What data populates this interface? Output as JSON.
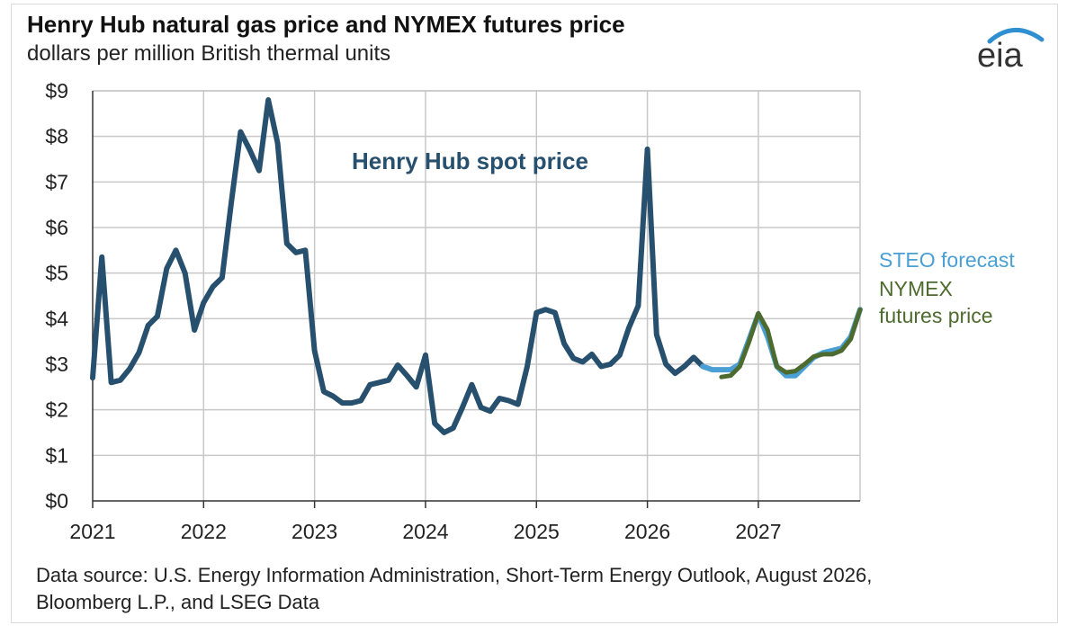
{
  "title": "Henry Hub natural gas price and NYMEX futures price",
  "subtitle": "dollars per million British thermal units",
  "logo_text": "eia",
  "source": {
    "line1": "Data source: U.S. Energy Information Administration, Short-Term Energy Outlook, August 2026,",
    "line2": "Bloomberg L.P., and LSEG Data"
  },
  "colors": {
    "spot": "#274f6e",
    "steo": "#4a9fd4",
    "nymex": "#4e6b2f",
    "grid": "#c8c8c8",
    "logo_arc": "#2f8fd0"
  },
  "chart_data": {
    "type": "line",
    "title": "Henry Hub natural gas price and NYMEX futures price",
    "ylabel": "dollars per million British thermal units",
    "xlim": [
      2021.0,
      2027.917
    ],
    "ylim": [
      0,
      9
    ],
    "yticks": [
      "$0",
      "$1",
      "$2",
      "$3",
      "$4",
      "$5",
      "$6",
      "$7",
      "$8",
      "$9"
    ],
    "xticks": [
      "2021",
      "2022",
      "2023",
      "2024",
      "2025",
      "2026",
      "2027"
    ],
    "grid": true,
    "series": [
      {
        "name": "Henry Hub spot price",
        "label_position": "inline",
        "x": [
          2021.0,
          2021.083,
          2021.167,
          2021.25,
          2021.333,
          2021.417,
          2021.5,
          2021.583,
          2021.667,
          2021.75,
          2021.833,
          2021.917,
          2022.0,
          2022.083,
          2022.167,
          2022.25,
          2022.333,
          2022.417,
          2022.5,
          2022.583,
          2022.667,
          2022.75,
          2022.833,
          2022.917,
          2023.0,
          2023.083,
          2023.167,
          2023.25,
          2023.333,
          2023.417,
          2023.5,
          2023.583,
          2023.667,
          2023.75,
          2023.833,
          2023.917,
          2024.0,
          2024.083,
          2024.167,
          2024.25,
          2024.333,
          2024.417,
          2024.5,
          2024.583,
          2024.667,
          2024.75,
          2024.833,
          2024.917,
          2025.0,
          2025.083,
          2025.167,
          2025.25,
          2025.333,
          2025.417,
          2025.5,
          2025.583,
          2025.667,
          2025.75,
          2025.833,
          2025.917,
          2026.0,
          2026.083,
          2026.167,
          2026.25,
          2026.333,
          2026.417,
          2026.5
        ],
        "values": [
          2.7,
          5.35,
          2.6,
          2.65,
          2.9,
          3.25,
          3.85,
          4.05,
          5.1,
          5.5,
          5.0,
          3.75,
          4.35,
          4.7,
          4.9,
          6.55,
          8.1,
          7.7,
          7.25,
          8.8,
          7.85,
          5.65,
          5.45,
          5.5,
          3.3,
          2.4,
          2.3,
          2.15,
          2.15,
          2.2,
          2.55,
          2.6,
          2.65,
          2.98,
          2.75,
          2.5,
          3.2,
          1.7,
          1.5,
          1.6,
          2.05,
          2.55,
          2.05,
          1.97,
          2.25,
          2.2,
          2.12,
          2.95,
          4.13,
          4.2,
          4.13,
          3.45,
          3.13,
          3.05,
          3.22,
          2.95,
          3.0,
          3.2,
          3.8,
          4.28,
          7.72,
          3.65,
          3.0,
          2.8,
          2.95,
          3.15,
          2.95
        ]
      },
      {
        "name": "STEO forecast",
        "label_position": "right",
        "x": [
          2026.5,
          2026.583,
          2026.667,
          2026.75,
          2026.833,
          2026.917,
          2027.0,
          2027.083,
          2027.167,
          2027.25,
          2027.333,
          2027.417,
          2027.5,
          2027.583,
          2027.667,
          2027.75,
          2027.833,
          2027.917
        ],
        "values": [
          2.95,
          2.88,
          2.88,
          2.88,
          3.0,
          3.55,
          4.1,
          3.6,
          2.95,
          2.75,
          2.75,
          2.95,
          3.15,
          3.25,
          3.3,
          3.35,
          3.6,
          4.2
        ]
      },
      {
        "name": "NYMEX futures price",
        "label_position": "right",
        "x": [
          2026.667,
          2026.75,
          2026.833,
          2026.917,
          2027.0,
          2027.083,
          2027.167,
          2027.25,
          2027.333,
          2027.417,
          2027.5,
          2027.583,
          2027.667,
          2027.75,
          2027.833,
          2027.917
        ],
        "values": [
          2.72,
          2.75,
          2.95,
          3.5,
          4.12,
          3.75,
          2.95,
          2.82,
          2.85,
          3.0,
          3.17,
          3.22,
          3.22,
          3.3,
          3.55,
          4.2
        ]
      }
    ]
  }
}
